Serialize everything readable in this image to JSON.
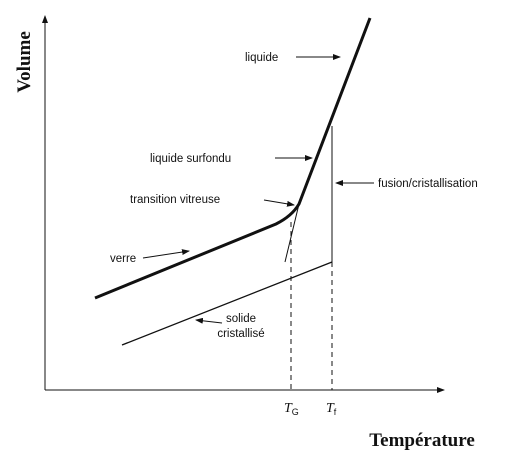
{
  "axes": {
    "y_label": "Volume",
    "x_label": "Température"
  },
  "labels": {
    "liquide": "liquide",
    "surfondu": "liquide surfondu",
    "transition": "transition vitreuse",
    "verre": "verre",
    "solide": [
      "solide",
      "cristallisé"
    ],
    "fusion": "fusion/cristallisation"
  },
  "ticks": {
    "tg": {
      "symbol": "T",
      "subscript": "G"
    },
    "tf": {
      "symbol": "T",
      "subscript": "f"
    }
  }
}
